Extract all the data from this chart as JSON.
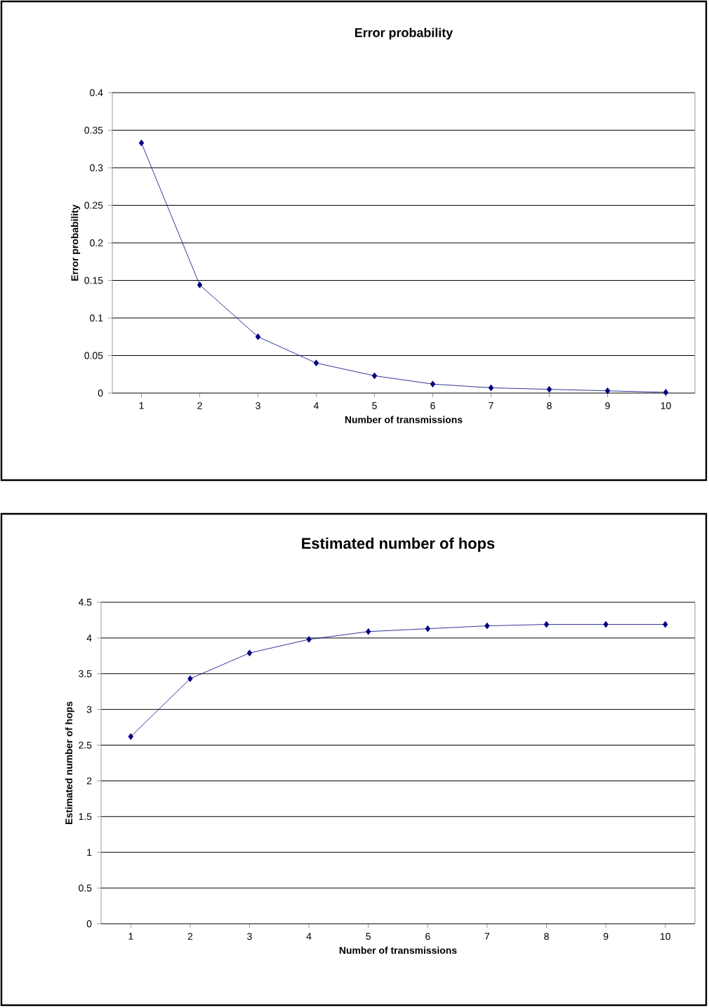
{
  "chart_data": [
    {
      "type": "line",
      "title": "Error probability",
      "xlabel": "Number of transmissions",
      "ylabel": "Error probability",
      "categories": [
        "1",
        "2",
        "3",
        "4",
        "5",
        "6",
        "7",
        "8",
        "9",
        "10"
      ],
      "series": [
        {
          "color": "#000080",
          "values": [
            0.333,
            0.144,
            0.075,
            0.04,
            0.023,
            0.012,
            0.007,
            0.005,
            0.003,
            0.001
          ]
        }
      ],
      "ylim": [
        0,
        0.4
      ],
      "yticks": [
        0,
        0.05,
        0.1,
        0.15,
        0.2,
        0.25,
        0.3,
        0.35,
        0.4
      ],
      "grid": "y",
      "marker": "diamond",
      "line_style": "solid"
    },
    {
      "type": "line",
      "title": "Estimated number of hops",
      "xlabel": "Number of transmissions",
      "ylabel": "Estimated number of hops",
      "categories": [
        "1",
        "2",
        "3",
        "4",
        "5",
        "6",
        "7",
        "8",
        "9",
        "10"
      ],
      "series": [
        {
          "color": "#000080",
          "values": [
            2.62,
            3.43,
            3.79,
            3.98,
            4.09,
            4.13,
            4.17,
            4.19,
            4.19,
            4.19
          ]
        }
      ],
      "ylim": [
        0,
        4.5
      ],
      "yticks": [
        0,
        0.5,
        1,
        1.5,
        2,
        2.5,
        3,
        3.5,
        4,
        4.5
      ],
      "grid": "y",
      "marker": "diamond",
      "line_style": "solid"
    }
  ]
}
